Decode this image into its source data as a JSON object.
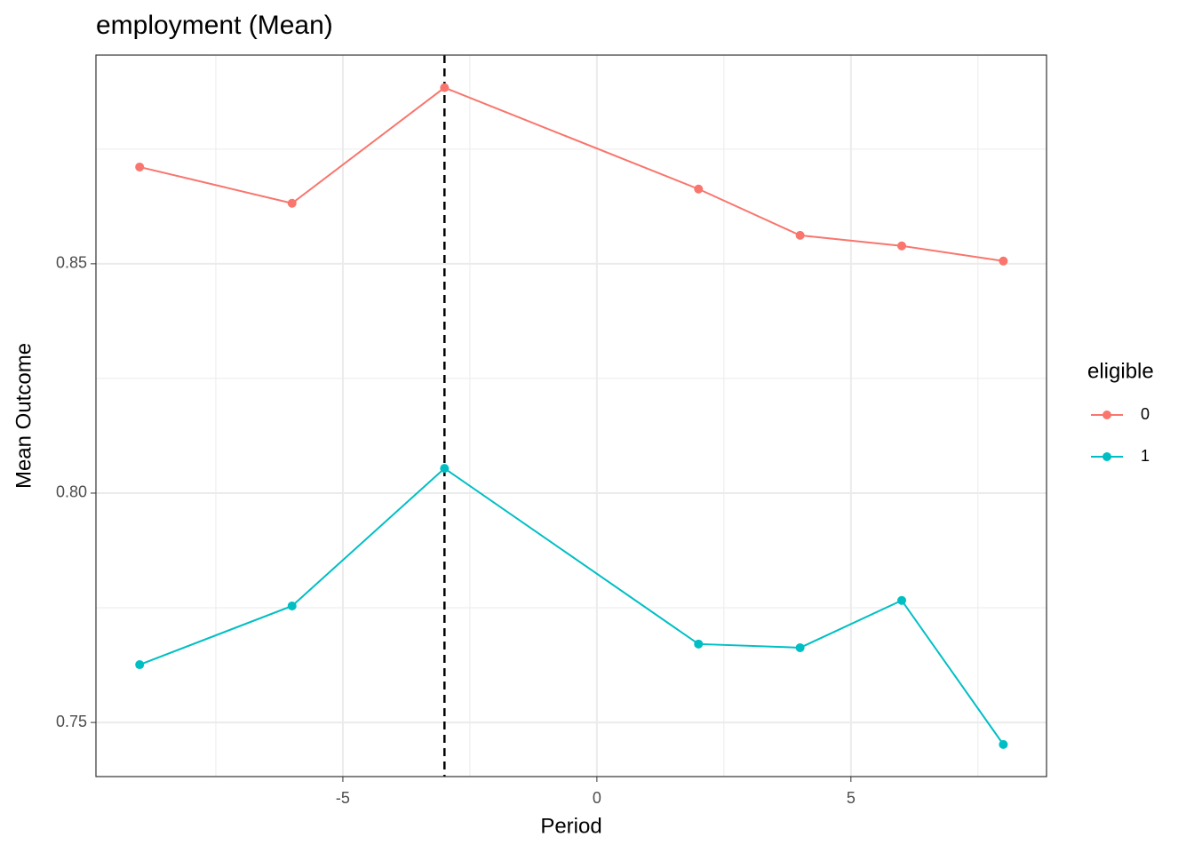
{
  "chart_data": {
    "type": "line",
    "title": "employment (Mean)",
    "x_label": "Period",
    "y_label": "Mean Outcome",
    "legend_title": "eligible",
    "legend_position": "right",
    "x": [
      -9,
      -6,
      -3,
      2,
      4,
      6,
      8
    ],
    "series": [
      {
        "name": "0",
        "color": "#F8766D",
        "values": [
          0.8711,
          0.8632,
          0.8884,
          0.8663,
          0.8562,
          0.8539,
          0.8506
        ]
      },
      {
        "name": "1",
        "color": "#00BFC4",
        "values": [
          0.7626,
          0.7754,
          0.8054,
          0.7671,
          0.7663,
          0.7766,
          0.7452
        ]
      }
    ],
    "xlim": [
      -9.86,
      8.85
    ],
    "ylim": [
      0.7382,
      0.8955
    ],
    "xticks": [
      -5,
      0,
      5
    ],
    "yticks": [
      {
        "value": 0.75,
        "label": "0.75"
      },
      {
        "value": 0.8,
        "label": "0.80"
      },
      {
        "value": 0.85,
        "label": "0.85"
      }
    ],
    "x_minor_grid": [
      -7.5,
      -2.5,
      2.5,
      7.5
    ],
    "y_minor_grid": [
      0.775,
      0.825,
      0.875
    ],
    "grid": true,
    "vline": {
      "x": -3,
      "color": "#000000",
      "dashed": true
    }
  }
}
